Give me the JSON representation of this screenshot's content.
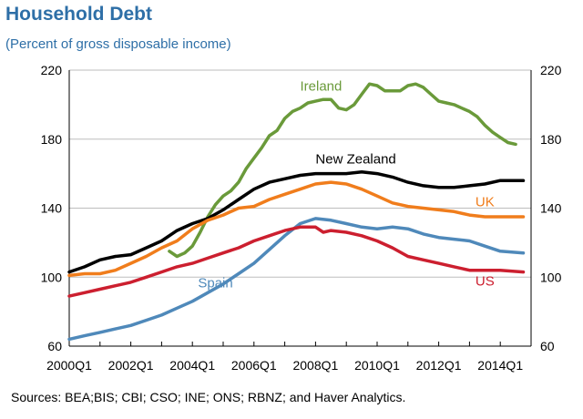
{
  "chart_data": {
    "type": "line",
    "title": "Household Debt",
    "subtitle": "(Percent of gross disposable income)",
    "source": "Sources: BEA;BIS; CBI; CSO; INE; ONS; RBNZ; and Haver Analytics.",
    "xlabel": "",
    "ylabel": "",
    "ylim": [
      60,
      220
    ],
    "yticks": [
      60,
      100,
      140,
      180,
      220
    ],
    "x_tick_labels": [
      "2000Q1",
      "2002Q1",
      "2004Q1",
      "2006Q1",
      "2008Q1",
      "2010Q1",
      "2012Q1",
      "2014Q1"
    ],
    "x_range": [
      "2000Q1",
      "2014Q4"
    ],
    "grid": "horizontal",
    "legend": "inline labels",
    "series": [
      {
        "name": "Ireland",
        "color": "#6a9a3a",
        "points": [
          [
            "2003Q2",
            115
          ],
          [
            "2003Q3",
            112
          ],
          [
            "2003Q4",
            114
          ],
          [
            "2004Q1",
            118
          ],
          [
            "2004Q2",
            126
          ],
          [
            "2004Q3",
            135
          ],
          [
            "2004Q4",
            142
          ],
          [
            "2005Q1",
            147
          ],
          [
            "2005Q2",
            150
          ],
          [
            "2005Q3",
            155
          ],
          [
            "2005Q4",
            163
          ],
          [
            "2006Q1",
            169
          ],
          [
            "2006Q2",
            175
          ],
          [
            "2006Q3",
            182
          ],
          [
            "2006Q4",
            185
          ],
          [
            "2007Q1",
            192
          ],
          [
            "2007Q2",
            196
          ],
          [
            "2007Q3",
            198
          ],
          [
            "2007Q4",
            201
          ],
          [
            "2008Q1",
            202
          ],
          [
            "2008Q2",
            203
          ],
          [
            "2008Q3",
            203
          ],
          [
            "2008Q4",
            198
          ],
          [
            "2009Q1",
            197
          ],
          [
            "2009Q2",
            200
          ],
          [
            "2009Q3",
            206
          ],
          [
            "2009Q4",
            212
          ],
          [
            "2010Q1",
            211
          ],
          [
            "2010Q2",
            208
          ],
          [
            "2010Q3",
            208
          ],
          [
            "2010Q4",
            208
          ],
          [
            "2011Q1",
            211
          ],
          [
            "2011Q2",
            212
          ],
          [
            "2011Q3",
            210
          ],
          [
            "2011Q4",
            206
          ],
          [
            "2012Q1",
            202
          ],
          [
            "2012Q2",
            201
          ],
          [
            "2012Q3",
            200
          ],
          [
            "2012Q4",
            198
          ],
          [
            "2013Q1",
            196
          ],
          [
            "2013Q2",
            193
          ],
          [
            "2013Q3",
            188
          ],
          [
            "2013Q4",
            184
          ],
          [
            "2014Q1",
            181
          ],
          [
            "2014Q2",
            178
          ],
          [
            "2014Q3",
            177
          ]
        ]
      },
      {
        "name": "New Zealand",
        "color": "#000000",
        "points": [
          [
            "2000Q1",
            103
          ],
          [
            "2000Q3",
            106
          ],
          [
            "2001Q1",
            110
          ],
          [
            "2001Q3",
            112
          ],
          [
            "2002Q1",
            113
          ],
          [
            "2002Q3",
            117
          ],
          [
            "2003Q1",
            121
          ],
          [
            "2003Q3",
            127
          ],
          [
            "2004Q1",
            131
          ],
          [
            "2004Q3",
            134
          ],
          [
            "2005Q1",
            139
          ],
          [
            "2005Q3",
            145
          ],
          [
            "2006Q1",
            151
          ],
          [
            "2006Q3",
            155
          ],
          [
            "2007Q1",
            157
          ],
          [
            "2007Q3",
            159
          ],
          [
            "2008Q1",
            160
          ],
          [
            "2008Q3",
            160
          ],
          [
            "2009Q1",
            160
          ],
          [
            "2009Q3",
            161
          ],
          [
            "2010Q1",
            160
          ],
          [
            "2010Q3",
            158
          ],
          [
            "2011Q1",
            155
          ],
          [
            "2011Q3",
            153
          ],
          [
            "2012Q1",
            152
          ],
          [
            "2012Q3",
            152
          ],
          [
            "2013Q1",
            153
          ],
          [
            "2013Q3",
            154
          ],
          [
            "2014Q1",
            156
          ],
          [
            "2014Q4",
            156
          ]
        ]
      },
      {
        "name": "UK",
        "color": "#f07d1c",
        "points": [
          [
            "2000Q1",
            101
          ],
          [
            "2000Q3",
            102
          ],
          [
            "2001Q1",
            102
          ],
          [
            "2001Q3",
            104
          ],
          [
            "2002Q1",
            108
          ],
          [
            "2002Q3",
            112
          ],
          [
            "2003Q1",
            117
          ],
          [
            "2003Q3",
            121
          ],
          [
            "2004Q1",
            128
          ],
          [
            "2004Q3",
            133
          ],
          [
            "2005Q1",
            136
          ],
          [
            "2005Q3",
            140
          ],
          [
            "2006Q1",
            141
          ],
          [
            "2006Q3",
            145
          ],
          [
            "2007Q1",
            148
          ],
          [
            "2007Q3",
            151
          ],
          [
            "2008Q1",
            154
          ],
          [
            "2008Q3",
            155
          ],
          [
            "2009Q1",
            154
          ],
          [
            "2009Q3",
            151
          ],
          [
            "2010Q1",
            147
          ],
          [
            "2010Q3",
            143
          ],
          [
            "2011Q1",
            141
          ],
          [
            "2011Q3",
            140
          ],
          [
            "2012Q1",
            139
          ],
          [
            "2012Q3",
            138
          ],
          [
            "2013Q1",
            136
          ],
          [
            "2013Q3",
            135
          ],
          [
            "2014Q1",
            135
          ],
          [
            "2014Q4",
            135
          ]
        ]
      },
      {
        "name": "Spain",
        "color": "#4f89ba",
        "points": [
          [
            "2000Q1",
            64
          ],
          [
            "2000Q3",
            66
          ],
          [
            "2001Q1",
            68
          ],
          [
            "2001Q3",
            70
          ],
          [
            "2002Q1",
            72
          ],
          [
            "2002Q3",
            75
          ],
          [
            "2003Q1",
            78
          ],
          [
            "2003Q3",
            82
          ],
          [
            "2004Q1",
            86
          ],
          [
            "2004Q3",
            91
          ],
          [
            "2005Q1",
            96
          ],
          [
            "2005Q3",
            102
          ],
          [
            "2006Q1",
            108
          ],
          [
            "2006Q3",
            116
          ],
          [
            "2007Q1",
            124
          ],
          [
            "2007Q3",
            131
          ],
          [
            "2008Q1",
            134
          ],
          [
            "2008Q3",
            133
          ],
          [
            "2009Q1",
            131
          ],
          [
            "2009Q3",
            129
          ],
          [
            "2010Q1",
            128
          ],
          [
            "2010Q3",
            129
          ],
          [
            "2011Q1",
            128
          ],
          [
            "2011Q3",
            125
          ],
          [
            "2012Q1",
            123
          ],
          [
            "2012Q3",
            122
          ],
          [
            "2013Q1",
            121
          ],
          [
            "2013Q3",
            118
          ],
          [
            "2014Q1",
            115
          ],
          [
            "2014Q4",
            114
          ]
        ]
      },
      {
        "name": "US",
        "color": "#cc1f2f",
        "points": [
          [
            "2000Q1",
            89
          ],
          [
            "2000Q3",
            91
          ],
          [
            "2001Q1",
            93
          ],
          [
            "2001Q3",
            95
          ],
          [
            "2002Q1",
            97
          ],
          [
            "2002Q3",
            100
          ],
          [
            "2003Q1",
            103
          ],
          [
            "2003Q3",
            106
          ],
          [
            "2004Q1",
            108
          ],
          [
            "2004Q3",
            111
          ],
          [
            "2005Q1",
            114
          ],
          [
            "2005Q3",
            117
          ],
          [
            "2006Q1",
            121
          ],
          [
            "2006Q3",
            124
          ],
          [
            "2007Q1",
            127
          ],
          [
            "2007Q3",
            129
          ],
          [
            "2008Q1",
            129
          ],
          [
            "2008Q2",
            126
          ],
          [
            "2008Q3",
            127
          ],
          [
            "2009Q1",
            126
          ],
          [
            "2009Q3",
            124
          ],
          [
            "2010Q1",
            121
          ],
          [
            "2010Q3",
            117
          ],
          [
            "2011Q1",
            112
          ],
          [
            "2011Q3",
            110
          ],
          [
            "2012Q1",
            108
          ],
          [
            "2012Q3",
            106
          ],
          [
            "2013Q1",
            104
          ],
          [
            "2013Q3",
            104
          ],
          [
            "2014Q1",
            104
          ],
          [
            "2014Q4",
            103
          ]
        ]
      }
    ]
  }
}
